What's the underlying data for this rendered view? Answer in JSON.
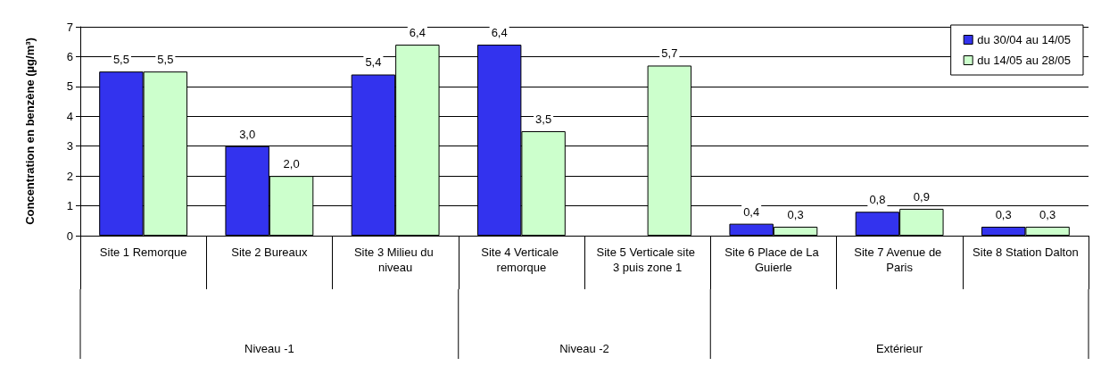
{
  "chart_data": {
    "type": "bar",
    "ylabel": "Concentration en benzène (µg/m³)",
    "categories": [
      "Site 1 Remorque",
      "Site 2 Bureaux",
      "Site 3 Milieu du niveau",
      "Site 4 Verticale remorque",
      "Site 5 Verticale site 3 puis zone 1",
      "Site 6 Place de La Guierle",
      "Site 7 Avenue de Paris",
      "Site 8 Station Dalton"
    ],
    "series": [
      {
        "name": "du 30/04 au 14/05",
        "color": "#3333ee",
        "values": [
          5.5,
          3.0,
          5.4,
          6.4,
          null,
          0.4,
          0.8,
          0.3
        ],
        "value_labels": [
          "5,5",
          "3,0",
          "5,4",
          "6,4",
          null,
          "0,4",
          "0,8",
          "0,3"
        ]
      },
      {
        "name": "du 14/05 au 28/05",
        "color": "#ccffcc",
        "values": [
          5.5,
          2.0,
          6.4,
          3.5,
          5.7,
          0.3,
          0.9,
          0.3
        ],
        "value_labels": [
          "5,5",
          "2,0",
          "6,4",
          "3,5",
          "5,7",
          "0,3",
          "0,9",
          "0,3"
        ]
      }
    ],
    "annotations": [
      "Niveau -1",
      "Niveau -2",
      "Extérieur"
    ],
    "ylim": [
      0,
      7
    ],
    "yticks": [
      0,
      1,
      2,
      3,
      4,
      5,
      6,
      7
    ],
    "grid": "y",
    "legend": "top right"
  }
}
